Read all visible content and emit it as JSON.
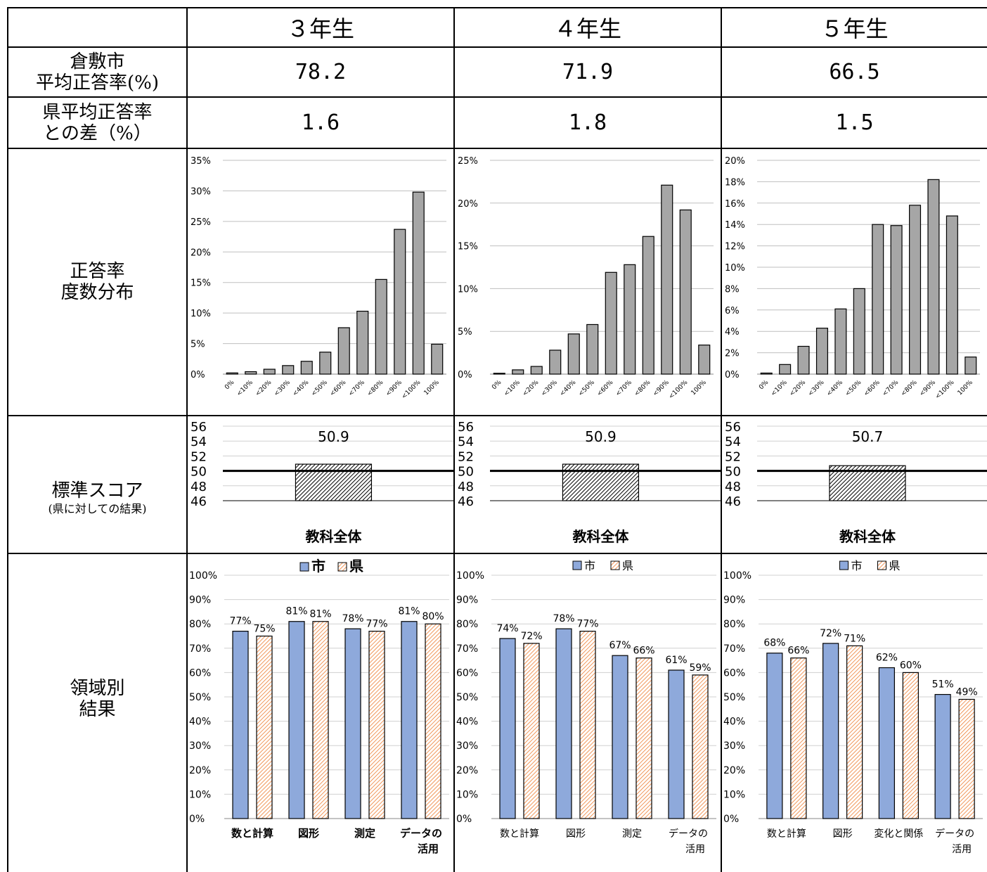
{
  "header": {
    "col1": "３年生",
    "col2": "４年生",
    "col3": "５年生"
  },
  "rows": {
    "avg_line1": "倉敷市",
    "avg_line2": "平均正答率(%)",
    "diff_line1": "県平均正答率",
    "diff_line2": "との差（%）",
    "dist_line1": "正答率",
    "dist_line2": "度数分布",
    "std_line1": "標準スコア",
    "std_line2": "(県に対しての結果)",
    "area_line1": "領域別",
    "area_line2": "結果"
  },
  "values": {
    "avg": [
      "78.2",
      "71.9",
      "66.5"
    ],
    "diff": [
      "1.6",
      "1.8",
      "1.5"
    ]
  },
  "chart_data": [
    {
      "type": "bar",
      "grade": "３年生",
      "categories": [
        "0%",
        "<10%",
        "<20%",
        "<30%",
        "<40%",
        "<50%",
        "<60%",
        "<70%",
        "<80%",
        "<90%",
        "<100%",
        "100%"
      ],
      "values": [
        0.2,
        0.4,
        0.8,
        1.4,
        2.1,
        3.6,
        7.6,
        10.3,
        15.5,
        23.7,
        29.8,
        4.9
      ],
      "ylim": [
        0,
        35
      ],
      "yticks": [
        0,
        5,
        10,
        15,
        20,
        25,
        30,
        35
      ],
      "unit": "%"
    },
    {
      "type": "bar",
      "grade": "４年生",
      "categories": [
        "0%",
        "<10%",
        "<20%",
        "<30%",
        "<40%",
        "<50%",
        "<60%",
        "<70%",
        "<80%",
        "<90%",
        "<100%",
        "100%"
      ],
      "values": [
        0.1,
        0.5,
        0.9,
        2.8,
        4.7,
        5.8,
        11.9,
        12.8,
        16.1,
        22.1,
        19.2,
        3.4
      ],
      "ylim": [
        0,
        25
      ],
      "yticks": [
        0,
        5,
        10,
        15,
        20,
        25
      ],
      "unit": "%"
    },
    {
      "type": "bar",
      "grade": "５年生",
      "categories": [
        "0%",
        "<10%",
        "<20%",
        "<30%",
        "<40%",
        "<50%",
        "<60%",
        "<70%",
        "<80%",
        "<90%",
        "<100%",
        "100%"
      ],
      "values": [
        0.1,
        0.9,
        2.6,
        4.3,
        6.1,
        8.0,
        14.0,
        13.9,
        15.8,
        18.2,
        14.8,
        1.6
      ],
      "ylim": [
        0,
        20
      ],
      "yticks": [
        0,
        2,
        4,
        6,
        8,
        10,
        12,
        14,
        16,
        18,
        20
      ],
      "unit": "%"
    },
    {
      "type": "bar",
      "grade": "３年生",
      "categories": [
        "教科全体"
      ],
      "values": [
        50.9
      ],
      "baseline": 50,
      "ylim": [
        46,
        56
      ],
      "yticks": [
        46,
        48,
        50,
        52,
        54,
        56
      ],
      "label": "50.9"
    },
    {
      "type": "bar",
      "grade": "４年生",
      "categories": [
        "教科全体"
      ],
      "values": [
        50.9
      ],
      "baseline": 50,
      "ylim": [
        46,
        56
      ],
      "yticks": [
        46,
        48,
        50,
        52,
        54,
        56
      ],
      "label": "50.9"
    },
    {
      "type": "bar",
      "grade": "５年生",
      "categories": [
        "教科全体"
      ],
      "values": [
        50.7
      ],
      "baseline": 50,
      "ylim": [
        46,
        56
      ],
      "yticks": [
        46,
        48,
        50,
        52,
        54,
        56
      ],
      "label": "50.7"
    },
    {
      "type": "bar",
      "grade": "３年生",
      "legend": [
        "市",
        "県"
      ],
      "categories": [
        "数と計算",
        "図形",
        "測定",
        "データの\n活用"
      ],
      "series": [
        {
          "name": "市",
          "values": [
            77,
            81,
            78,
            81
          ],
          "color": "#8EA9DB"
        },
        {
          "name": "県",
          "values": [
            75,
            81,
            77,
            80
          ],
          "color": "#F4B183"
        }
      ],
      "ylim": [
        0,
        100
      ],
      "yticks": [
        0,
        10,
        20,
        30,
        40,
        50,
        60,
        70,
        80,
        90,
        100
      ],
      "unit": "%"
    },
    {
      "type": "bar",
      "grade": "４年生",
      "legend": [
        "市",
        "県"
      ],
      "categories": [
        "数と計算",
        "図形",
        "測定",
        "データの\n活用"
      ],
      "series": [
        {
          "name": "市",
          "values": [
            74,
            78,
            67,
            61
          ],
          "color": "#8EA9DB"
        },
        {
          "name": "県",
          "values": [
            72,
            77,
            66,
            59
          ],
          "color": "#F4B183"
        }
      ],
      "ylim": [
        0,
        100
      ],
      "yticks": [
        0,
        10,
        20,
        30,
        40,
        50,
        60,
        70,
        80,
        90,
        100
      ],
      "unit": "%"
    },
    {
      "type": "bar",
      "grade": "５年生",
      "legend": [
        "市",
        "県"
      ],
      "categories": [
        "数と計算",
        "図形",
        "変化と関係",
        "データの\n活用"
      ],
      "series": [
        {
          "name": "市",
          "values": [
            68,
            72,
            62,
            51
          ],
          "color": "#8EA9DB"
        },
        {
          "name": "県",
          "values": [
            66,
            71,
            60,
            49
          ],
          "color": "#F4B183"
        }
      ],
      "ylim": [
        0,
        100
      ],
      "yticks": [
        0,
        10,
        20,
        30,
        40,
        50,
        60,
        70,
        80,
        90,
        100
      ],
      "unit": "%"
    }
  ]
}
